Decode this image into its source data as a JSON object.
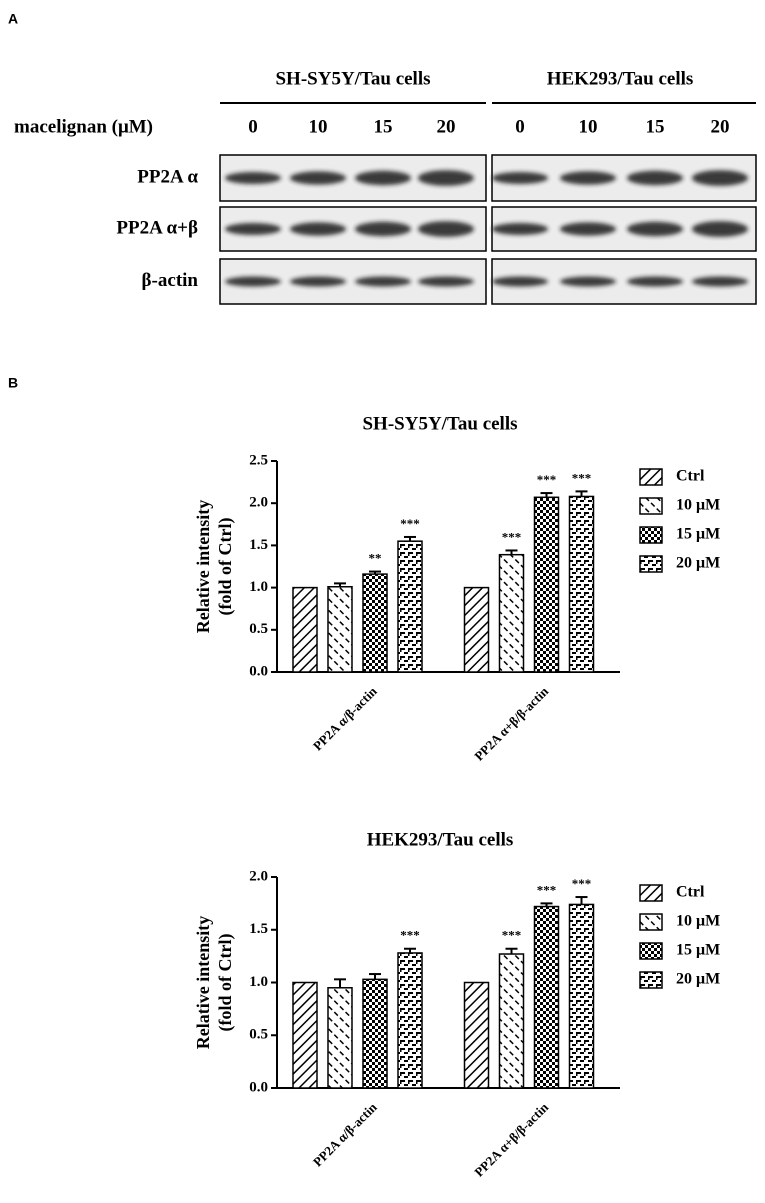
{
  "panel_a": {
    "label": "A",
    "groups": [
      "SH-SY5Y/Tau cells",
      "HEK293/Tau cells"
    ],
    "row_header": "macelignan (μM)",
    "concentrations": [
      "0",
      "10",
      "15",
      "20"
    ],
    "rows": [
      "PP2A α",
      "PP2A α+β",
      "β-actin"
    ]
  },
  "panel_b_label": "B",
  "chart_data": [
    {
      "type": "bar",
      "title": "SH-SY5Y/Tau cells",
      "ylabel": [
        "Relative intensity",
        "(fold of Ctrl)"
      ],
      "categories": [
        "PP2A α/β-actin",
        "PP2A α+β/β-actin"
      ],
      "ylim": [
        0,
        2.5
      ],
      "yticks": [
        {
          "value": 0,
          "label": "0.0"
        },
        0.5,
        {
          "value": 1,
          "label": "1.0"
        },
        1.5,
        {
          "value": 2,
          "label": "2.0"
        },
        2.5
      ],
      "series": [
        {
          "name": "Ctrl",
          "color": "#000000",
          "pattern": "hatch-down",
          "values": [
            1,
            1
          ],
          "errors": [
            0,
            0
          ]
        },
        {
          "name": "10 μM",
          "color": "#000000",
          "pattern": "hatch-up",
          "values": [
            1.01,
            1.39
          ],
          "errors": [
            0.04,
            0.05
          ],
          "annotations": [
            null,
            "***"
          ]
        },
        {
          "name": "15 μM",
          "color": "#000000",
          "pattern": "checker",
          "values": [
            1.16,
            2.07
          ],
          "errors": [
            0.03,
            0.05
          ],
          "annotations": [
            "**",
            "***"
          ]
        },
        {
          "name": "20 μM",
          "color": "#000000",
          "pattern": "brick",
          "values": [
            1.55,
            2.08
          ],
          "errors": [
            0.05,
            0.06
          ],
          "annotations": [
            "***",
            "***"
          ]
        }
      ],
      "legend": "right"
    },
    {
      "type": "bar",
      "title": "HEK293/Tau cells",
      "ylabel": [
        "Relative intensity",
        "(fold of Ctrl)"
      ],
      "categories": [
        "PP2A α/β-actin",
        "PP2A α+β/β-actin"
      ],
      "ylim": [
        0,
        2
      ],
      "yticks": [
        {
          "value": 0,
          "label": "0.0"
        },
        0.5,
        {
          "value": 1,
          "label": "1.0"
        },
        1.5,
        {
          "value": 2,
          "label": "2.0"
        }
      ],
      "series": [
        {
          "name": "Ctrl",
          "color": "#000000",
          "pattern": "hatch-down",
          "values": [
            1,
            1
          ],
          "errors": [
            0,
            0
          ]
        },
        {
          "name": "10 μM",
          "color": "#000000",
          "pattern": "hatch-up",
          "values": [
            0.95,
            1.27
          ],
          "errors": [
            0.08,
            0.05
          ],
          "annotations": [
            null,
            "***"
          ]
        },
        {
          "name": "15 μM",
          "color": "#000000",
          "pattern": "checker",
          "values": [
            1.03,
            1.72
          ],
          "errors": [
            0.05,
            0.03
          ],
          "annotations": [
            null,
            "***"
          ]
        },
        {
          "name": "20 μM",
          "color": "#000000",
          "pattern": "brick",
          "values": [
            1.28,
            1.74
          ],
          "errors": [
            0.04,
            0.07
          ],
          "annotations": [
            "***",
            "***"
          ]
        }
      ],
      "legend": "right"
    }
  ]
}
